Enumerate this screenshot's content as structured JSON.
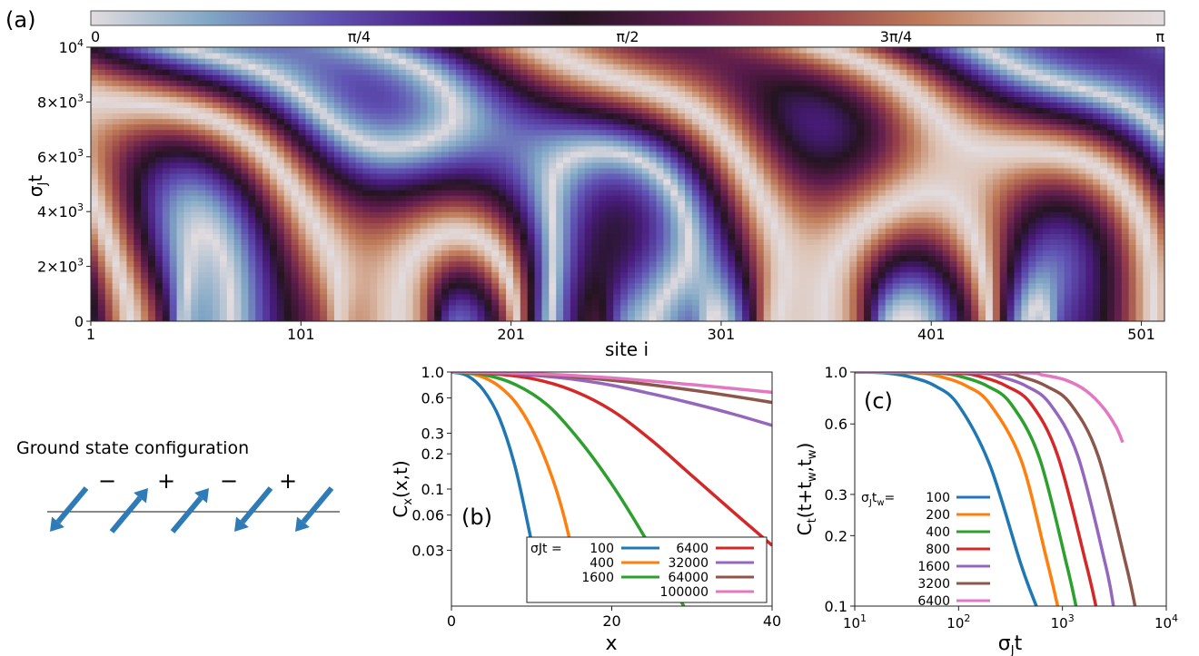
{
  "figure": {
    "panel_a_label": "(a)",
    "panel_b_label": "(b)",
    "panel_c_label": "(c)"
  },
  "colorbar": {
    "colors": [
      "#e2dcdf",
      "#7fa6c5",
      "#5f52b3",
      "#491c7d",
      "#241421",
      "#5b1b4c",
      "#963f49",
      "#bf7c5a",
      "#ddc1b1",
      "#e2dcdf"
    ],
    "ticks": [
      "0",
      "π/4",
      "π/2",
      "3π/4",
      "π"
    ]
  },
  "ground_state": {
    "title": "Ground state configuration",
    "signs": [
      "−",
      "+",
      "−",
      "+"
    ],
    "spins": [
      "down-left",
      "up-right",
      "up-right",
      "down-left",
      "down-left"
    ],
    "arrow_color": "#2f7bb7"
  },
  "chart_data": [
    {
      "type": "heatmap",
      "xlabel": "site i",
      "ylabel": "σJt",
      "ylabel_main": "σ",
      "ylabel_sub": "J",
      "ylabel_tail": "t",
      "xlim": [
        1,
        512
      ],
      "ylim": [
        0,
        10000
      ],
      "x_ticks": [
        1,
        101,
        201,
        301,
        401,
        501
      ],
      "y_ticks": [
        {
          "value": 0,
          "base": "0",
          "sup": ""
        },
        {
          "value": 2000,
          "base": "2×10",
          "sup": "3"
        },
        {
          "value": 4000,
          "base": "4×10",
          "sup": "3"
        },
        {
          "value": 6000,
          "base": "6×10",
          "sup": "3"
        },
        {
          "value": 8000,
          "base": "8×10",
          "sup": "3"
        },
        {
          "value": 10000,
          "base": "10",
          "sup": "4"
        }
      ],
      "value_range": [
        0,
        3.14159
      ]
    },
    {
      "type": "line",
      "xlabel": "x",
      "ylabel_main": "C",
      "ylabel_sub": "x",
      "ylabel_tail": "(x,t)",
      "xlim": [
        0,
        40
      ],
      "ylim": [
        0.01,
        1.0
      ],
      "yscale": "log",
      "x_ticks": [
        0,
        20,
        40
      ],
      "y_ticks": [
        {
          "value": 1.0,
          "label": "1.0"
        },
        {
          "value": 0.6,
          "label": "0.6"
        },
        {
          "value": 0.3,
          "label": "0.3"
        },
        {
          "value": 0.2,
          "label": "0.2"
        },
        {
          "value": 0.1,
          "label": "0.1"
        },
        {
          "value": 0.06,
          "label": "0.06"
        },
        {
          "value": 0.03,
          "label": "0.03"
        }
      ],
      "legend_prefix": "σJt =",
      "legend_placement": "bottom-right",
      "series": [
        {
          "name": "100",
          "color": "#1f77b4",
          "x": [
            0,
            2,
            4,
            6,
            8,
            10,
            11.5
          ],
          "y": [
            1.0,
            0.93,
            0.7,
            0.4,
            0.15,
            0.035,
            0.011
          ]
        },
        {
          "name": "400",
          "color": "#ff7f0e",
          "x": [
            0,
            2,
            4,
            6,
            8,
            10,
            12,
            14,
            16.5
          ],
          "y": [
            1.0,
            0.98,
            0.9,
            0.75,
            0.55,
            0.33,
            0.16,
            0.06,
            0.011
          ]
        },
        {
          "name": "1600",
          "color": "#2ca02c",
          "x": [
            0,
            4,
            8,
            12,
            16,
            20,
            24,
            28,
            29
          ],
          "y": [
            1.0,
            0.95,
            0.78,
            0.52,
            0.26,
            0.11,
            0.04,
            0.013,
            0.01
          ]
        },
        {
          "name": "6400",
          "color": "#d62728",
          "x": [
            0,
            5,
            10,
            15,
            20,
            25,
            30,
            35,
            40
          ],
          "y": [
            1.0,
            0.97,
            0.88,
            0.7,
            0.47,
            0.26,
            0.13,
            0.065,
            0.033
          ]
        },
        {
          "name": "32000",
          "color": "#9467bd",
          "x": [
            0,
            5,
            10,
            15,
            20,
            25,
            30,
            35,
            40
          ],
          "y": [
            1.0,
            0.985,
            0.94,
            0.87,
            0.77,
            0.65,
            0.54,
            0.44,
            0.35
          ]
        },
        {
          "name": "64000",
          "color": "#8c564b",
          "x": [
            0,
            10,
            20,
            30,
            40
          ],
          "y": [
            1.0,
            0.96,
            0.85,
            0.7,
            0.55
          ]
        },
        {
          "name": "100000",
          "color": "#e377c2",
          "x": [
            0,
            10,
            20,
            30,
            40
          ],
          "y": [
            1.0,
            0.97,
            0.89,
            0.78,
            0.67
          ]
        }
      ]
    },
    {
      "type": "line",
      "xlabel_main": "σ",
      "xlabel_sub": "J",
      "xlabel_tail": "t",
      "ylabel_main": "C",
      "ylabel_sub": "t",
      "ylabel_tail": "(t+t",
      "ylabel_sub2": "w",
      "ylabel_mid": ",t",
      "ylabel_sub3": "w",
      "ylabel_end": ")",
      "xlim": [
        10,
        10000
      ],
      "ylim": [
        0.1,
        1.0
      ],
      "xscale": "log",
      "yscale": "log",
      "x_ticks": [
        {
          "value": 10,
          "base": "10",
          "sup": "1"
        },
        {
          "value": 100,
          "base": "10",
          "sup": "2"
        },
        {
          "value": 1000,
          "base": "10",
          "sup": "3"
        },
        {
          "value": 10000,
          "base": "10",
          "sup": "4"
        }
      ],
      "y_ticks": [
        {
          "value": 1.0,
          "label": "1.0"
        },
        {
          "value": 0.6,
          "label": "0.6"
        },
        {
          "value": 0.3,
          "label": "0.3"
        },
        {
          "value": 0.2,
          "label": "0.2"
        },
        {
          "value": 0.1,
          "label": "0.1"
        }
      ],
      "legend_prefix": "σJtw=",
      "legend_placement": "left",
      "series": [
        {
          "name": "100",
          "color": "#1f77b4",
          "x": [
            10,
            20,
            35,
            60,
            100,
            200,
            400,
            560
          ],
          "y": [
            1.0,
            0.99,
            0.95,
            0.87,
            0.72,
            0.4,
            0.15,
            0.1
          ]
        },
        {
          "name": "200",
          "color": "#ff7f0e",
          "x": [
            10,
            40,
            70,
            120,
            200,
            400,
            700,
            900
          ],
          "y": [
            1.0,
            0.99,
            0.95,
            0.87,
            0.73,
            0.42,
            0.16,
            0.1
          ]
        },
        {
          "name": "400",
          "color": "#2ca02c",
          "x": [
            10,
            60,
            110,
            190,
            320,
            600,
            1100,
            1350
          ],
          "y": [
            1.0,
            0.99,
            0.95,
            0.87,
            0.73,
            0.43,
            0.15,
            0.1
          ]
        },
        {
          "name": "800",
          "color": "#d62728",
          "x": [
            10,
            90,
            170,
            290,
            500,
            900,
            1700,
            2100
          ],
          "y": [
            1.0,
            0.99,
            0.95,
            0.87,
            0.73,
            0.44,
            0.15,
            0.1
          ]
        },
        {
          "name": "1600",
          "color": "#9467bd",
          "x": [
            10,
            140,
            260,
            450,
            760,
            1400,
            2600,
            3100
          ],
          "y": [
            1.0,
            0.99,
            0.95,
            0.87,
            0.73,
            0.44,
            0.15,
            0.1
          ]
        },
        {
          "name": "3200",
          "color": "#8c564b",
          "x": [
            10,
            220,
            410,
            700,
            1200,
            2200,
            4100,
            5000
          ],
          "y": [
            1.0,
            0.99,
            0.95,
            0.87,
            0.73,
            0.44,
            0.15,
            0.1
          ]
        },
        {
          "name": "6400",
          "color": "#e377c2",
          "x": [
            10,
            350,
            650,
            1100,
            1700,
            2500,
            3300,
            3800
          ],
          "y": [
            1.0,
            0.995,
            0.97,
            0.92,
            0.83,
            0.7,
            0.58,
            0.5
          ]
        }
      ]
    }
  ]
}
